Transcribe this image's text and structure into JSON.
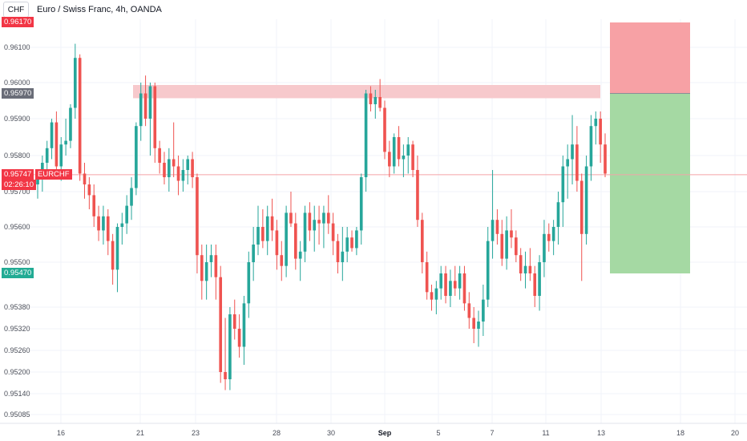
{
  "header": {
    "symbol_box": "CHF",
    "title": "Euro / Swiss Franc, 4h, OANDA"
  },
  "badges": {
    "top_price": "0.96170",
    "resistance_price": "0.95970",
    "current_price": "0.95747",
    "symbol": "EURCHF",
    "countdown": "02:26:10",
    "support_price": "0.95470"
  },
  "colors": {
    "up": "#26a69a",
    "down": "#ef5350",
    "badge_red": "#f23645",
    "badge_gray": "#6a6d78",
    "badge_green": "#22ab94",
    "resistance_zone": "#f7c9cc",
    "stop_zone": "#f7a1a5",
    "target_zone": "#a5d9a3"
  },
  "chart_data": {
    "type": "candlestick",
    "title": "Euro / Swiss Franc, 4h, OANDA",
    "y_ticks": [
      "0.96100",
      "0.96000",
      "0.95900",
      "0.95800",
      "0.95700",
      "0.95600",
      "0.95500",
      "0.95380",
      "0.95320",
      "0.95260",
      "0.95200",
      "0.95140",
      "0.95085"
    ],
    "x_ticks": [
      "16",
      "21",
      "23",
      "28",
      "30",
      "Sep",
      "5",
      "7",
      "11",
      "13",
      "18",
      "20"
    ],
    "current_price": 0.95747,
    "resistance_zone": [
      0.9597,
      0.96
    ],
    "position": {
      "entry": 0.9597,
      "stop": 0.9617,
      "target": 0.9547
    },
    "candles": [
      [
        0.9572,
        0.9576,
        0.9568,
        0.9574
      ],
      [
        0.9574,
        0.958,
        0.957,
        0.9578
      ],
      [
        0.9578,
        0.9584,
        0.9574,
        0.9582
      ],
      [
        0.9582,
        0.959,
        0.9579,
        0.9589
      ],
      [
        0.9589,
        0.9592,
        0.9574,
        0.9577
      ],
      [
        0.9577,
        0.9585,
        0.9573,
        0.9583
      ],
      [
        0.9583,
        0.959,
        0.958,
        0.9584
      ],
      [
        0.9584,
        0.9594,
        0.9582,
        0.9593
      ],
      [
        0.9593,
        0.9611,
        0.959,
        0.9607
      ],
      [
        0.9607,
        0.9608,
        0.9573,
        0.9575
      ],
      [
        0.9575,
        0.9578,
        0.9568,
        0.9572
      ],
      [
        0.9572,
        0.9574,
        0.9565,
        0.9569
      ],
      [
        0.9569,
        0.9572,
        0.956,
        0.9563
      ],
      [
        0.9563,
        0.9566,
        0.9556,
        0.9559
      ],
      [
        0.9559,
        0.9566,
        0.9555,
        0.9563
      ],
      [
        0.9563,
        0.9565,
        0.9552,
        0.9556
      ],
      [
        0.9556,
        0.9558,
        0.9544,
        0.9548
      ],
      [
        0.9548,
        0.9561,
        0.9542,
        0.956
      ],
      [
        0.956,
        0.9564,
        0.9555,
        0.9561
      ],
      [
        0.9561,
        0.9569,
        0.9558,
        0.9566
      ],
      [
        0.9566,
        0.9574,
        0.9562,
        0.9571
      ],
      [
        0.9571,
        0.9589,
        0.9569,
        0.9588
      ],
      [
        0.9588,
        0.96,
        0.9584,
        0.9597
      ],
      [
        0.9597,
        0.9602,
        0.9588,
        0.959
      ],
      [
        0.959,
        0.96,
        0.958,
        0.9599
      ],
      [
        0.9599,
        0.96,
        0.9578,
        0.9582
      ],
      [
        0.9582,
        0.9584,
        0.9575,
        0.9578
      ],
      [
        0.9578,
        0.9581,
        0.9572,
        0.9574
      ],
      [
        0.9574,
        0.9582,
        0.957,
        0.9579
      ],
      [
        0.9579,
        0.9589,
        0.9574,
        0.9577
      ],
      [
        0.9577,
        0.958,
        0.9569,
        0.9573
      ],
      [
        0.9573,
        0.9579,
        0.957,
        0.9576
      ],
      [
        0.9576,
        0.958,
        0.9572,
        0.9579
      ],
      [
        0.9579,
        0.9581,
        0.9571,
        0.9574
      ],
      [
        0.9574,
        0.9575,
        0.9547,
        0.9552
      ],
      [
        0.9552,
        0.9555,
        0.954,
        0.9545
      ],
      [
        0.9545,
        0.9555,
        0.954,
        0.955
      ],
      [
        0.955,
        0.9555,
        0.9546,
        0.9552
      ],
      [
        0.9552,
        0.9555,
        0.954,
        0.9546
      ],
      [
        0.9546,
        0.9549,
        0.9517,
        0.952
      ],
      [
        0.952,
        0.9535,
        0.9515,
        0.9518
      ],
      [
        0.9518,
        0.9538,
        0.9515,
        0.9536
      ],
      [
        0.9536,
        0.954,
        0.9529,
        0.9532
      ],
      [
        0.9532,
        0.9536,
        0.9524,
        0.9527
      ],
      [
        0.9527,
        0.9541,
        0.9522,
        0.9539
      ],
      [
        0.9539,
        0.9553,
        0.9535,
        0.955
      ],
      [
        0.955,
        0.956,
        0.9545,
        0.9555
      ],
      [
        0.9555,
        0.9566,
        0.9552,
        0.956
      ],
      [
        0.956,
        0.9565,
        0.9554,
        0.9556
      ],
      [
        0.9556,
        0.9566,
        0.9552,
        0.9563
      ],
      [
        0.9563,
        0.9568,
        0.9556,
        0.9559
      ],
      [
        0.9559,
        0.9562,
        0.9548,
        0.9552
      ],
      [
        0.9552,
        0.9556,
        0.9545,
        0.9549
      ],
      [
        0.9549,
        0.9566,
        0.9546,
        0.9564
      ],
      [
        0.9564,
        0.957,
        0.956,
        0.9561
      ],
      [
        0.9561,
        0.9564,
        0.9548,
        0.9551
      ],
      [
        0.9551,
        0.9556,
        0.9545,
        0.9553
      ],
      [
        0.9553,
        0.9566,
        0.955,
        0.9564
      ],
      [
        0.9564,
        0.9567,
        0.9556,
        0.9559
      ],
      [
        0.9559,
        0.9566,
        0.9553,
        0.9562
      ],
      [
        0.9562,
        0.9566,
        0.9555,
        0.9561
      ],
      [
        0.9561,
        0.9566,
        0.9554,
        0.9564
      ],
      [
        0.9564,
        0.9569,
        0.9558,
        0.9561
      ],
      [
        0.9561,
        0.9564,
        0.9552,
        0.9556
      ],
      [
        0.9556,
        0.9558,
        0.9547,
        0.955
      ],
      [
        0.955,
        0.956,
        0.9545,
        0.9553
      ],
      [
        0.9553,
        0.956,
        0.955,
        0.9557
      ],
      [
        0.9557,
        0.9559,
        0.9553,
        0.9554
      ],
      [
        0.9554,
        0.956,
        0.9552,
        0.9559
      ],
      [
        0.9559,
        0.9575,
        0.9555,
        0.9574
      ],
      [
        0.9574,
        0.9598,
        0.957,
        0.9597
      ],
      [
        0.9597,
        0.9599,
        0.9592,
        0.9594
      ],
      [
        0.9594,
        0.9598,
        0.959,
        0.9596
      ],
      [
        0.9596,
        0.9601,
        0.9592,
        0.9593
      ],
      [
        0.9593,
        0.9595,
        0.9579,
        0.9581
      ],
      [
        0.9581,
        0.9584,
        0.9574,
        0.9577
      ],
      [
        0.9577,
        0.9586,
        0.9575,
        0.9585
      ],
      [
        0.9585,
        0.9588,
        0.9577,
        0.9579
      ],
      [
        0.9579,
        0.9583,
        0.9574,
        0.958
      ],
      [
        0.958,
        0.9585,
        0.9575,
        0.9583
      ],
      [
        0.9583,
        0.9584,
        0.9574,
        0.9576
      ],
      [
        0.9576,
        0.958,
        0.956,
        0.9562
      ],
      [
        0.9562,
        0.9564,
        0.9547,
        0.955
      ],
      [
        0.955,
        0.9553,
        0.954,
        0.9542
      ],
      [
        0.9542,
        0.9544,
        0.9537,
        0.954
      ],
      [
        0.954,
        0.9545,
        0.9536,
        0.9543
      ],
      [
        0.9543,
        0.9549,
        0.954,
        0.9547
      ],
      [
        0.9547,
        0.9549,
        0.9539,
        0.9541
      ],
      [
        0.9541,
        0.9548,
        0.9538,
        0.9545
      ],
      [
        0.9545,
        0.9549,
        0.9541,
        0.9543
      ],
      [
        0.9543,
        0.9549,
        0.954,
        0.9547
      ],
      [
        0.9547,
        0.9549,
        0.9537,
        0.9539
      ],
      [
        0.9539,
        0.9542,
        0.9532,
        0.9535
      ],
      [
        0.9535,
        0.9538,
        0.9528,
        0.9532
      ],
      [
        0.9532,
        0.9537,
        0.9527,
        0.9534
      ],
      [
        0.9534,
        0.9544,
        0.953,
        0.954
      ],
      [
        0.954,
        0.956,
        0.9538,
        0.9556
      ],
      [
        0.9556,
        0.9576,
        0.9551,
        0.9562
      ],
      [
        0.9562,
        0.9565,
        0.9555,
        0.9558
      ],
      [
        0.9558,
        0.9562,
        0.9549,
        0.9551
      ],
      [
        0.9551,
        0.9563,
        0.9548,
        0.9559
      ],
      [
        0.9559,
        0.9565,
        0.9554,
        0.9557
      ],
      [
        0.9557,
        0.9559,
        0.955,
        0.9552
      ],
      [
        0.9552,
        0.9554,
        0.9545,
        0.9547
      ],
      [
        0.9547,
        0.9553,
        0.9543,
        0.9549
      ],
      [
        0.9549,
        0.9554,
        0.9545,
        0.9547
      ],
      [
        0.9547,
        0.9549,
        0.9538,
        0.9541
      ],
      [
        0.9541,
        0.9552,
        0.9537,
        0.955
      ],
      [
        0.955,
        0.9562,
        0.9546,
        0.9558
      ],
      [
        0.9558,
        0.9561,
        0.9553,
        0.9556
      ],
      [
        0.9556,
        0.9562,
        0.9552,
        0.956
      ],
      [
        0.956,
        0.957,
        0.9555,
        0.9567
      ],
      [
        0.9567,
        0.958,
        0.956,
        0.9577
      ],
      [
        0.9577,
        0.9583,
        0.9568,
        0.9579
      ],
      [
        0.9579,
        0.9591,
        0.9572,
        0.9583
      ],
      [
        0.9583,
        0.9588,
        0.957,
        0.9573
      ],
      [
        0.9573,
        0.9575,
        0.9545,
        0.9558
      ],
      [
        0.9558,
        0.958,
        0.9555,
        0.9577
      ],
      [
        0.9577,
        0.9591,
        0.9573,
        0.9588
      ],
      [
        0.9588,
        0.9592,
        0.9583,
        0.959
      ],
      [
        0.959,
        0.9592,
        0.9578,
        0.9583
      ],
      [
        0.9583,
        0.9586,
        0.9574,
        0.9575
      ]
    ]
  }
}
